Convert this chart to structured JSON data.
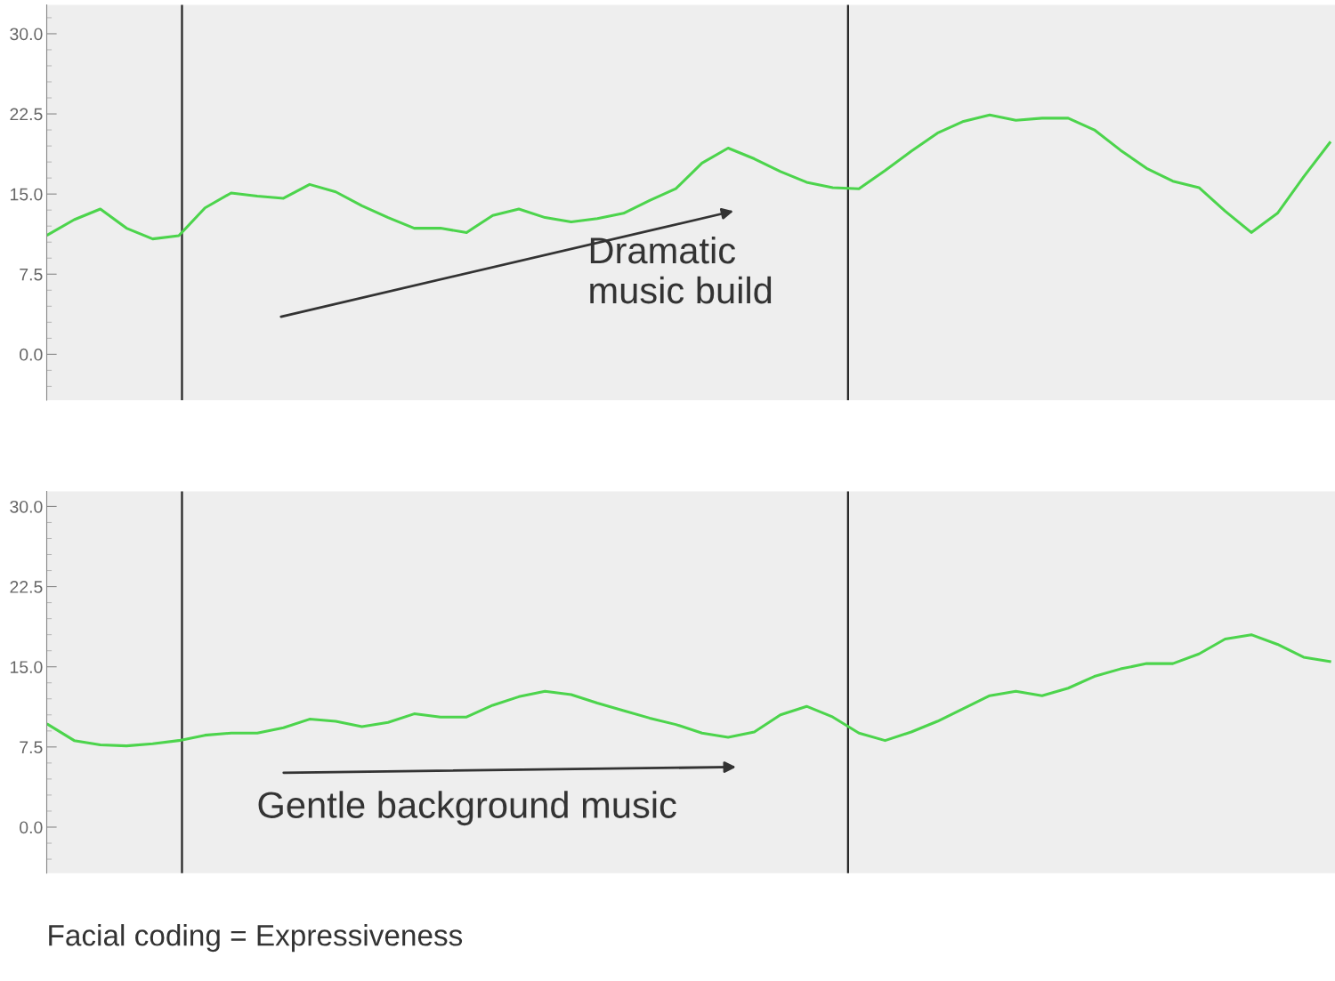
{
  "chart_data": [
    {
      "type": "line",
      "categories": [
        null,
        null,
        null,
        null,
        null,
        null,
        null,
        null,
        null,
        null,
        null,
        null,
        null,
        null,
        null,
        null,
        null,
        null,
        null,
        null,
        null,
        null,
        null,
        null,
        null,
        null,
        null,
        null,
        null,
        null,
        null,
        null,
        null,
        null,
        null,
        null,
        null,
        null,
        null,
        null,
        null,
        null,
        null,
        null,
        null,
        null,
        null,
        null,
        null,
        null
      ],
      "series": [
        {
          "color": "#4cd44c",
          "values": [
            11.2,
            12.6,
            13.6,
            11.8,
            10.8,
            11.1,
            13.7,
            15.1,
            14.8,
            14.6,
            15.9,
            15.2,
            13.9,
            12.8,
            11.8,
            11.8,
            11.4,
            13.0,
            13.6,
            12.8,
            12.4,
            12.7,
            13.2,
            14.4,
            15.5,
            17.9,
            19.3,
            18.3,
            17.1,
            16.1,
            15.6,
            15.5,
            17.2,
            19.0,
            20.7,
            21.8,
            22.4,
            21.9,
            22.1,
            22.1,
            21.0,
            19.1,
            17.4,
            16.2,
            15.6,
            13.4,
            11.4,
            13.2,
            16.6,
            19.8
          ]
        }
      ],
      "ylim": [
        -4.3,
        32.7
      ],
      "yticks": [
        {
          "value": 0,
          "label": "0.0"
        },
        {
          "value": 7.5,
          "label": "7.5"
        },
        {
          "value": 15,
          "label": "15.0"
        },
        {
          "value": 22.5,
          "label": "22.5"
        },
        {
          "value": 30,
          "label": "30.0"
        }
      ],
      "tick_labels": "y",
      "grid": false,
      "marker": "none",
      "line_style": "solid",
      "annotations": [
        "Dramatic\nmusic build"
      ]
    },
    {
      "type": "line",
      "categories": [
        null,
        null,
        null,
        null,
        null,
        null,
        null,
        null,
        null,
        null,
        null,
        null,
        null,
        null,
        null,
        null,
        null,
        null,
        null,
        null,
        null,
        null,
        null,
        null,
        null,
        null,
        null,
        null,
        null,
        null,
        null,
        null,
        null,
        null,
        null,
        null,
        null,
        null,
        null,
        null,
        null,
        null,
        null,
        null,
        null,
        null,
        null,
        null,
        null,
        null
      ],
      "series": [
        {
          "color": "#4cd44c",
          "values": [
            9.6,
            8.1,
            7.7,
            7.6,
            7.8,
            8.1,
            8.6,
            8.8,
            8.8,
            9.3,
            10.1,
            9.9,
            9.4,
            9.8,
            10.6,
            10.3,
            10.3,
            11.4,
            12.2,
            12.7,
            12.4,
            11.6,
            10.9,
            10.2,
            9.6,
            8.8,
            8.4,
            8.9,
            10.5,
            11.3,
            10.3,
            8.8,
            8.1,
            8.9,
            9.9,
            11.1,
            12.3,
            12.7,
            12.3,
            13.0,
            14.1,
            14.8,
            15.3,
            15.3,
            16.2,
            17.6,
            18.0,
            17.1,
            15.9,
            15.5
          ]
        }
      ],
      "ylim": [
        -4.3,
        31.4
      ],
      "yticks": [
        {
          "value": 0,
          "label": "0.0"
        },
        {
          "value": 7.5,
          "label": "7.5"
        },
        {
          "value": 15,
          "label": "15.0"
        },
        {
          "value": 22.5,
          "label": "22.5"
        },
        {
          "value": 30,
          "label": "30.0"
        }
      ],
      "tick_labels": "y",
      "grid": false,
      "marker": "none",
      "line_style": "solid",
      "annotations": [
        "Gentle background music",
        "Facial coding = Expressiveness"
      ]
    }
  ]
}
